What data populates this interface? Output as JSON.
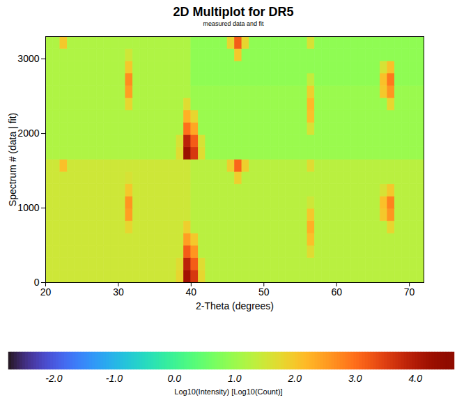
{
  "chart_data": {
    "type": "heatmap",
    "title": "2D Multiplot for DR5",
    "subtitle": "measured data and fit",
    "x_label": "2-Theta (degrees)",
    "y_label": "Spectrum # (data | fit)",
    "xlim": [
      20,
      72
    ],
    "xticks": [
      20,
      30,
      40,
      50,
      60,
      70
    ],
    "ylim": [
      0,
      3300
    ],
    "yticks": [
      0,
      1000,
      2000,
      3000
    ],
    "x_edges": [
      20,
      21,
      22,
      23,
      24,
      25,
      26,
      27,
      28,
      29,
      30,
      31,
      32,
      33,
      34,
      35,
      36,
      37,
      38,
      39,
      40,
      41,
      42,
      43,
      44,
      45,
      46,
      47,
      48,
      49,
      50,
      51,
      52,
      53,
      54,
      55,
      56,
      57,
      58,
      59,
      60,
      61,
      62,
      63,
      64,
      65,
      66,
      67,
      68,
      69,
      70,
      71,
      72
    ],
    "y_edges": [
      0,
      165,
      330,
      495,
      660,
      825,
      990,
      1155,
      1320,
      1485,
      1650,
      1815,
      1980,
      2145,
      2310,
      2475,
      2640,
      2805,
      2970,
      3135,
      3300
    ],
    "cells": [
      [
        1.5,
        1.5,
        1.5,
        1.5,
        1.5,
        1.5,
        1.5,
        1.5,
        1.5,
        1.5,
        1.5,
        1.5,
        1.5,
        1.5,
        1.5,
        1.5,
        1.5,
        1.5,
        1.8,
        4.2,
        3.6,
        1.8,
        1.3,
        1.3,
        1.3,
        1.3,
        1.3,
        1.3,
        1.3,
        1.3,
        1.3,
        1.3,
        1.3,
        1.3,
        1.3,
        1.3,
        1.3,
        1.3,
        1.3,
        1.3,
        1.3,
        1.3,
        1.3,
        1.3,
        1.3,
        1.3,
        1.3,
        1.3,
        1.3,
        1.3,
        1.3,
        1.3
      ],
      [
        1.5,
        1.5,
        1.5,
        1.5,
        1.5,
        1.5,
        1.5,
        1.5,
        1.5,
        1.5,
        1.5,
        1.5,
        1.5,
        1.5,
        1.5,
        1.5,
        1.5,
        1.5,
        1.7,
        3.9,
        3.2,
        1.7,
        1.3,
        1.3,
        1.3,
        1.3,
        1.3,
        1.3,
        1.3,
        1.3,
        1.3,
        1.3,
        1.3,
        1.3,
        1.3,
        1.3,
        1.3,
        1.3,
        1.3,
        1.3,
        1.3,
        1.3,
        1.3,
        1.3,
        1.3,
        1.3,
        1.3,
        1.3,
        1.3,
        1.3,
        1.3,
        1.3
      ],
      [
        1.5,
        1.5,
        1.5,
        1.5,
        1.5,
        1.5,
        1.5,
        1.5,
        1.5,
        1.5,
        1.5,
        1.5,
        1.5,
        1.5,
        1.5,
        1.5,
        1.5,
        1.5,
        1.5,
        3.2,
        2.6,
        1.3,
        1.3,
        1.3,
        1.3,
        1.3,
        1.3,
        1.3,
        1.3,
        1.3,
        1.3,
        1.3,
        1.3,
        1.3,
        1.3,
        1.3,
        1.7,
        1.3,
        1.3,
        1.3,
        1.3,
        1.3,
        1.3,
        1.3,
        1.3,
        1.3,
        1.3,
        1.3,
        1.3,
        1.3,
        1.3,
        1.3
      ],
      [
        1.5,
        1.5,
        1.5,
        1.5,
        1.5,
        1.5,
        1.5,
        1.5,
        1.5,
        1.5,
        1.5,
        1.5,
        1.5,
        1.5,
        1.5,
        1.5,
        1.5,
        1.5,
        1.5,
        2.5,
        2.0,
        1.3,
        1.3,
        1.3,
        1.3,
        1.3,
        1.3,
        1.3,
        1.3,
        1.3,
        1.3,
        1.3,
        1.3,
        1.3,
        1.3,
        1.3,
        2.1,
        1.3,
        1.3,
        1.3,
        1.3,
        1.3,
        1.3,
        1.3,
        1.3,
        1.3,
        1.3,
        1.3,
        1.3,
        1.3,
        1.3,
        1.3
      ],
      [
        1.5,
        1.5,
        1.5,
        1.5,
        1.5,
        1.5,
        1.5,
        1.5,
        1.5,
        1.5,
        1.5,
        1.8,
        1.5,
        1.5,
        1.5,
        1.5,
        1.5,
        1.5,
        1.5,
        1.9,
        1.3,
        1.3,
        1.3,
        1.3,
        1.3,
        1.3,
        1.3,
        1.3,
        1.3,
        1.3,
        1.3,
        1.3,
        1.3,
        1.3,
        1.3,
        1.3,
        2.3,
        1.3,
        1.3,
        1.3,
        1.3,
        1.3,
        1.3,
        1.3,
        1.3,
        1.3,
        1.3,
        1.8,
        1.3,
        1.3,
        1.3,
        1.3
      ],
      [
        1.5,
        1.5,
        1.5,
        1.5,
        1.5,
        1.5,
        1.5,
        1.5,
        1.5,
        1.5,
        1.5,
        2.5,
        1.5,
        1.5,
        1.5,
        1.5,
        1.5,
        1.5,
        1.5,
        1.5,
        1.3,
        1.3,
        1.3,
        1.3,
        1.3,
        1.3,
        1.3,
        1.3,
        1.3,
        1.3,
        1.3,
        1.3,
        1.3,
        1.3,
        1.3,
        1.3,
        2.0,
        1.3,
        1.3,
        1.3,
        1.3,
        1.3,
        1.3,
        1.3,
        1.3,
        1.3,
        2.0,
        2.6,
        1.3,
        1.3,
        1.3,
        1.3
      ],
      [
        1.5,
        1.5,
        1.5,
        1.5,
        1.5,
        1.5,
        1.5,
        1.5,
        1.5,
        1.5,
        1.5,
        2.6,
        1.5,
        1.5,
        1.5,
        1.5,
        1.5,
        1.5,
        1.5,
        1.5,
        1.3,
        1.3,
        1.3,
        1.3,
        1.3,
        1.3,
        1.3,
        1.3,
        1.3,
        1.3,
        1.3,
        1.3,
        1.3,
        1.3,
        1.3,
        1.3,
        1.5,
        1.3,
        1.3,
        1.3,
        1.3,
        1.3,
        1.3,
        1.3,
        1.3,
        1.3,
        2.1,
        2.8,
        1.3,
        1.3,
        1.3,
        1.3
      ],
      [
        1.5,
        1.5,
        1.5,
        1.5,
        1.5,
        1.5,
        1.5,
        1.5,
        1.5,
        1.5,
        1.5,
        2.0,
        1.5,
        1.5,
        1.5,
        1.5,
        1.5,
        1.5,
        1.5,
        1.5,
        1.3,
        1.3,
        1.3,
        1.3,
        1.3,
        1.3,
        1.3,
        1.3,
        1.3,
        1.3,
        1.3,
        1.3,
        1.3,
        1.3,
        1.3,
        1.3,
        1.3,
        1.3,
        1.3,
        1.3,
        1.3,
        1.3,
        1.3,
        1.3,
        1.3,
        1.3,
        1.6,
        2.0,
        1.3,
        1.3,
        1.3,
        1.3
      ],
      [
        1.5,
        1.5,
        1.5,
        1.5,
        1.5,
        1.5,
        1.5,
        1.5,
        1.5,
        1.5,
        1.5,
        1.6,
        1.5,
        1.5,
        1.5,
        1.5,
        1.5,
        1.5,
        1.5,
        1.5,
        1.3,
        1.3,
        1.3,
        1.3,
        1.3,
        1.3,
        1.9,
        1.3,
        1.3,
        1.3,
        1.3,
        1.3,
        1.3,
        1.3,
        1.3,
        1.3,
        1.3,
        1.3,
        1.3,
        1.3,
        1.3,
        1.3,
        1.3,
        1.3,
        1.3,
        1.3,
        1.3,
        1.3,
        1.3,
        1.3,
        1.3,
        1.3
      ],
      [
        1.5,
        1.5,
        2.1,
        1.5,
        1.5,
        1.5,
        1.5,
        1.5,
        1.5,
        1.5,
        1.5,
        1.5,
        1.5,
        1.5,
        1.5,
        1.5,
        1.5,
        1.5,
        1.5,
        1.5,
        1.3,
        1.3,
        1.3,
        1.3,
        1.3,
        1.9,
        3.1,
        1.9,
        1.3,
        1.3,
        1.3,
        1.3,
        1.3,
        1.3,
        1.3,
        1.3,
        1.7,
        1.3,
        1.3,
        1.3,
        1.3,
        1.3,
        1.3,
        1.3,
        1.3,
        1.3,
        1.3,
        1.3,
        1.3,
        1.3,
        1.3,
        1.3
      ],
      [
        1.2,
        1.2,
        1.2,
        1.2,
        1.2,
        1.2,
        1.2,
        1.2,
        1.2,
        1.2,
        1.2,
        1.2,
        1.2,
        1.2,
        1.2,
        1.2,
        1.2,
        1.2,
        1.7,
        4.3,
        3.6,
        1.7,
        1.0,
        1.0,
        1.0,
        1.0,
        1.0,
        1.0,
        1.0,
        1.0,
        1.0,
        1.0,
        1.0,
        1.0,
        1.0,
        1.0,
        1.0,
        1.0,
        1.0,
        1.0,
        1.0,
        1.0,
        1.0,
        1.0,
        1.0,
        1.0,
        1.0,
        1.0,
        1.0,
        1.0,
        1.0,
        1.0
      ],
      [
        1.2,
        1.2,
        1.2,
        1.2,
        1.2,
        1.2,
        1.2,
        1.2,
        1.2,
        1.2,
        1.2,
        1.2,
        1.2,
        1.2,
        1.2,
        1.2,
        1.2,
        1.2,
        1.6,
        3.9,
        3.2,
        1.6,
        1.0,
        1.0,
        1.0,
        1.0,
        1.0,
        1.0,
        1.0,
        1.0,
        1.0,
        1.0,
        1.0,
        1.0,
        1.0,
        1.0,
        1.0,
        1.0,
        1.0,
        1.0,
        1.0,
        1.0,
        1.0,
        1.0,
        1.0,
        1.0,
        1.0,
        1.0,
        1.0,
        1.0,
        1.0,
        1.0
      ],
      [
        1.2,
        1.2,
        1.2,
        1.2,
        1.2,
        1.2,
        1.2,
        1.2,
        1.2,
        1.2,
        1.2,
        1.2,
        1.2,
        1.2,
        1.2,
        1.2,
        1.2,
        1.2,
        1.2,
        3.0,
        2.4,
        1.0,
        1.0,
        1.0,
        1.0,
        1.0,
        1.0,
        1.0,
        1.0,
        1.0,
        1.0,
        1.0,
        1.0,
        1.0,
        1.0,
        1.0,
        1.6,
        1.0,
        1.0,
        1.0,
        1.0,
        1.0,
        1.0,
        1.0,
        1.0,
        1.0,
        1.0,
        1.0,
        1.0,
        1.0,
        1.0,
        1.0
      ],
      [
        1.2,
        1.2,
        1.2,
        1.2,
        1.2,
        1.2,
        1.2,
        1.2,
        1.2,
        1.2,
        1.2,
        1.2,
        1.2,
        1.2,
        1.2,
        1.2,
        1.2,
        1.2,
        1.2,
        2.3,
        1.8,
        1.0,
        1.0,
        1.0,
        1.0,
        1.0,
        1.0,
        1.0,
        1.0,
        1.0,
        1.0,
        1.0,
        1.0,
        1.0,
        1.0,
        1.0,
        2.1,
        1.0,
        1.0,
        1.0,
        1.0,
        1.0,
        1.0,
        1.0,
        1.0,
        1.0,
        1.0,
        1.0,
        1.0,
        1.0,
        1.0,
        1.0
      ],
      [
        1.2,
        1.2,
        1.2,
        1.2,
        1.2,
        1.2,
        1.2,
        1.2,
        1.2,
        1.2,
        1.2,
        1.8,
        1.2,
        1.2,
        1.2,
        1.2,
        1.2,
        1.2,
        1.2,
        1.7,
        1.0,
        1.0,
        1.0,
        1.0,
        1.0,
        1.0,
        1.0,
        1.0,
        1.0,
        1.0,
        1.0,
        1.0,
        1.0,
        1.0,
        1.0,
        1.0,
        2.2,
        1.0,
        1.0,
        1.0,
        1.0,
        1.0,
        1.0,
        1.0,
        1.0,
        1.0,
        1.0,
        1.8,
        1.0,
        1.0,
        1.0,
        1.0
      ],
      [
        1.2,
        1.2,
        1.2,
        1.2,
        1.2,
        1.2,
        1.2,
        1.2,
        1.2,
        1.2,
        1.2,
        2.5,
        1.2,
        1.2,
        1.2,
        1.2,
        1.2,
        1.2,
        1.2,
        1.2,
        1.0,
        1.0,
        1.0,
        1.0,
        1.0,
        1.0,
        1.0,
        1.0,
        1.0,
        1.0,
        1.0,
        1.0,
        1.0,
        1.0,
        1.0,
        1.0,
        1.9,
        1.0,
        1.0,
        1.0,
        1.0,
        1.0,
        1.0,
        1.0,
        1.0,
        1.0,
        2.0,
        2.6,
        1.0,
        1.0,
        1.0,
        1.0
      ],
      [
        1.2,
        1.2,
        1.2,
        1.2,
        1.2,
        1.2,
        1.2,
        1.2,
        1.2,
        1.2,
        1.2,
        2.7,
        1.2,
        1.2,
        1.2,
        1.2,
        1.2,
        1.2,
        1.2,
        1.2,
        0.9,
        0.9,
        0.9,
        0.9,
        0.9,
        0.9,
        0.9,
        0.9,
        0.9,
        0.9,
        0.9,
        0.9,
        0.9,
        0.9,
        0.9,
        0.9,
        1.4,
        0.9,
        0.9,
        0.9,
        0.9,
        0.9,
        0.9,
        0.9,
        0.9,
        0.9,
        2.1,
        2.9,
        0.9,
        0.9,
        0.9,
        0.9
      ],
      [
        1.2,
        1.2,
        1.2,
        1.2,
        1.2,
        1.2,
        1.2,
        1.2,
        1.2,
        1.2,
        1.2,
        2.0,
        1.2,
        1.2,
        1.2,
        1.2,
        1.2,
        1.2,
        1.2,
        1.2,
        0.9,
        0.9,
        0.9,
        0.9,
        0.9,
        0.9,
        0.9,
        0.9,
        0.9,
        0.9,
        0.9,
        0.9,
        0.9,
        0.9,
        0.9,
        0.9,
        0.9,
        0.9,
        0.9,
        0.9,
        0.9,
        0.9,
        0.9,
        0.9,
        0.9,
        0.9,
        1.6,
        2.1,
        0.9,
        0.9,
        0.9,
        0.9
      ],
      [
        1.2,
        1.2,
        1.2,
        1.2,
        1.2,
        1.2,
        1.2,
        1.2,
        1.2,
        1.2,
        1.2,
        1.5,
        1.2,
        1.2,
        1.2,
        1.2,
        1.2,
        1.2,
        1.2,
        1.2,
        0.9,
        0.9,
        0.9,
        0.9,
        0.9,
        0.9,
        2.0,
        0.9,
        0.9,
        0.9,
        0.9,
        0.9,
        0.9,
        0.9,
        0.9,
        0.9,
        0.9,
        0.9,
        0.9,
        0.9,
        0.9,
        0.9,
        0.9,
        0.9,
        0.9,
        0.9,
        0.9,
        0.9,
        0.9,
        0.9,
        0.9,
        0.9
      ],
      [
        1.2,
        1.2,
        2.0,
        1.2,
        1.2,
        1.2,
        1.2,
        1.2,
        1.2,
        1.2,
        1.2,
        1.2,
        1.2,
        1.2,
        1.2,
        1.2,
        1.2,
        1.2,
        1.2,
        1.2,
        0.9,
        0.9,
        0.9,
        0.9,
        0.9,
        1.8,
        3.2,
        1.8,
        0.9,
        0.9,
        0.9,
        0.9,
        0.9,
        0.9,
        0.9,
        0.9,
        1.6,
        0.9,
        0.9,
        0.9,
        0.9,
        0.9,
        0.9,
        0.9,
        0.9,
        0.9,
        0.9,
        0.9,
        0.9,
        0.9,
        0.9,
        0.9
      ]
    ],
    "colorbar": {
      "label": "Log10(Intensity) [Log10(Count)]",
      "range": [
        -2.75,
        4.65
      ],
      "ticks": [
        {
          "value": -2,
          "label": "-2.0"
        },
        {
          "value": -1,
          "label": "-1.0"
        },
        {
          "value": 0,
          "label": "0.0"
        },
        {
          "value": 1,
          "label": "1.0"
        },
        {
          "value": 2,
          "label": "2.0"
        },
        {
          "value": 3,
          "label": "3.0"
        },
        {
          "value": 4,
          "label": "4.0"
        }
      ]
    }
  }
}
